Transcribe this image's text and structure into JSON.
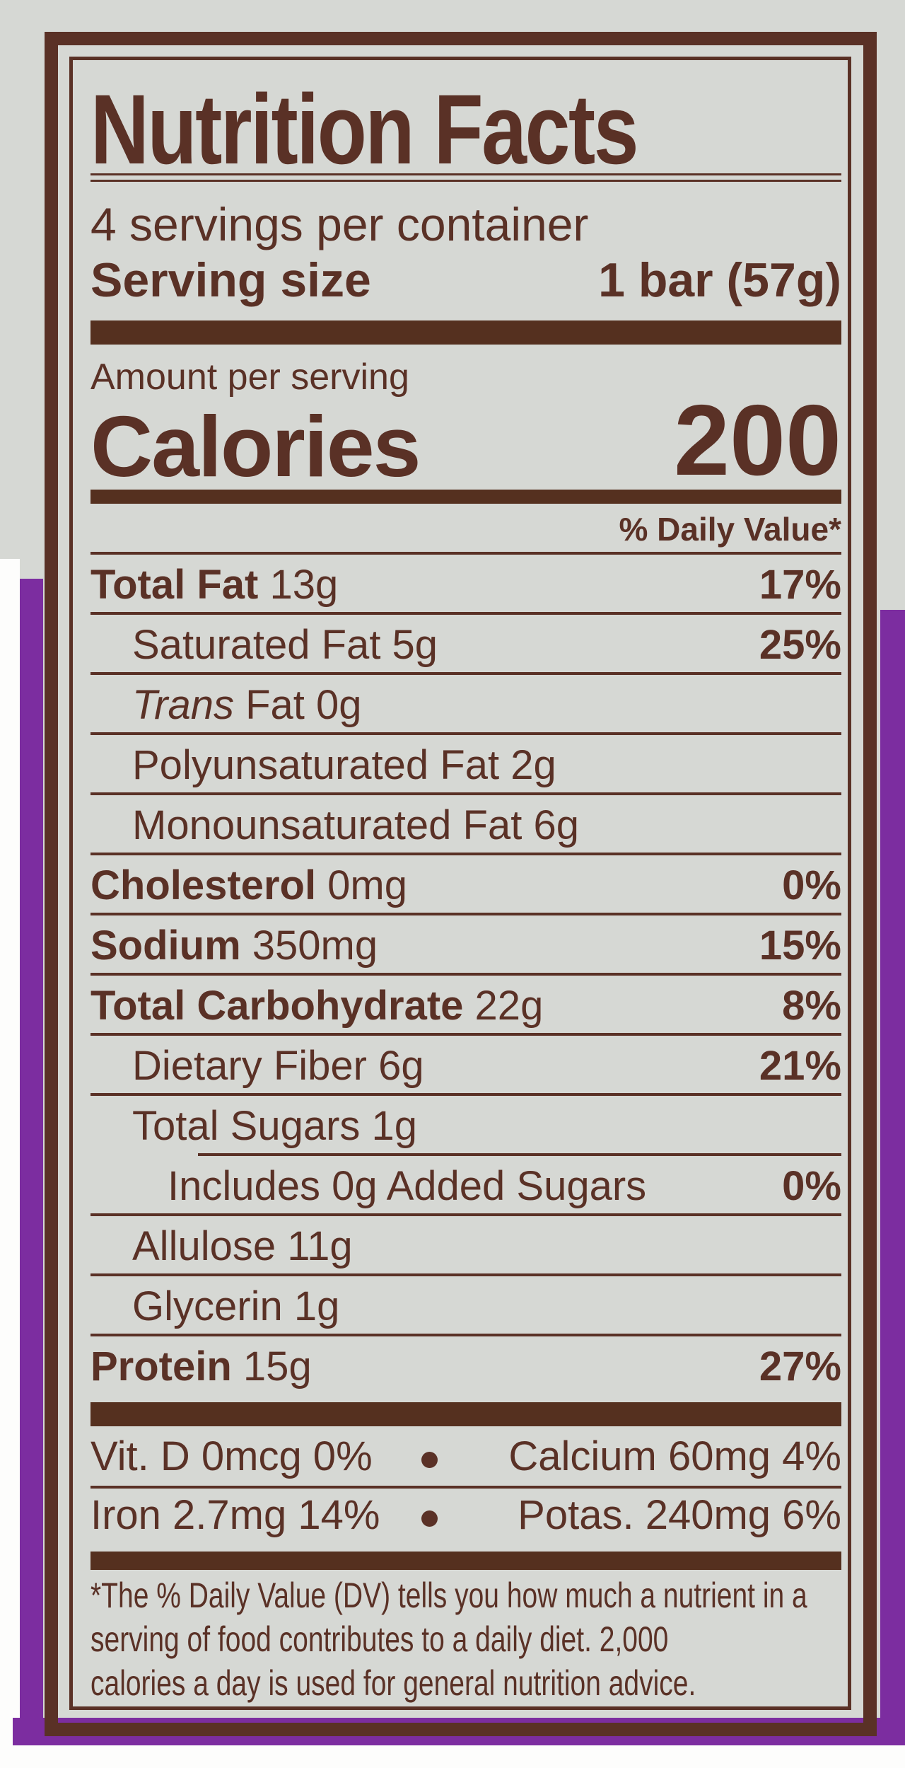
{
  "colors": {
    "brown": "#5a3126",
    "label_gray": "#d6d8d4",
    "package_purple": "#7c2da0",
    "scan_white": "#fdfdfc"
  },
  "label": {
    "title": "Nutrition Facts",
    "servings_per_container": "4 servings per container",
    "serving_size_label": "Serving size",
    "serving_size_value": "1 bar (57g)",
    "amount_per_serving": "Amount per serving",
    "calories_label": "Calories",
    "calories_value": "200",
    "daily_value_header": "% Daily Value*",
    "rows": [
      {
        "bold": "Total Fat",
        "rest": " 13g",
        "dv": "17%",
        "indent": 0,
        "rule_above": "none"
      },
      {
        "rest": "Saturated Fat 5g",
        "dv": "25%",
        "indent": 1,
        "rule_above": "full"
      },
      {
        "italic": "Trans",
        "rest": " Fat 0g",
        "dv": "",
        "indent": 1,
        "rule_above": "full"
      },
      {
        "rest": "Polyunsaturated Fat 2g",
        "dv": "",
        "indent": 1,
        "rule_above": "full"
      },
      {
        "rest": "Monounsaturated Fat 6g",
        "dv": "",
        "indent": 1,
        "rule_above": "full"
      },
      {
        "bold": "Cholesterol",
        "rest": " 0mg",
        "dv": "0%",
        "indent": 0,
        "rule_above": "full"
      },
      {
        "bold": "Sodium",
        "rest": " 350mg",
        "dv": "15%",
        "indent": 0,
        "rule_above": "full"
      },
      {
        "bold": "Total Carbohydrate",
        "rest": " 22g",
        "dv": "8%",
        "indent": 0,
        "rule_above": "full"
      },
      {
        "rest": "Dietary Fiber 6g",
        "dv": "21%",
        "indent": 1,
        "rule_above": "full"
      },
      {
        "rest": "Total Sugars 1g",
        "dv": "",
        "indent": 1,
        "rule_above": "full"
      },
      {
        "rest": "Includes 0g Added Sugars",
        "dv": "0%",
        "indent": 2,
        "rule_above": "partial"
      },
      {
        "rest": "Allulose 11g",
        "dv": "",
        "indent": 1,
        "rule_above": "full"
      },
      {
        "rest": "Glycerin 1g",
        "dv": "",
        "indent": 1,
        "rule_above": "full"
      },
      {
        "bold": "Protein",
        "rest": " 15g",
        "dv": "27%",
        "indent": 0,
        "rule_above": "full"
      }
    ],
    "micronutrients": [
      {
        "left": "Vit. D 0mcg 0%",
        "right": "Calcium 60mg 4%"
      },
      {
        "left": "Iron 2.7mg 14%",
        "right": "Potas. 240mg 6%"
      }
    ],
    "footnote_lines": [
      "*The % Daily Value (DV) tells you how much a nutrient in a",
      "serving of food contributes to a daily diet. 2,000",
      "calories a day is used for general nutrition advice."
    ]
  }
}
